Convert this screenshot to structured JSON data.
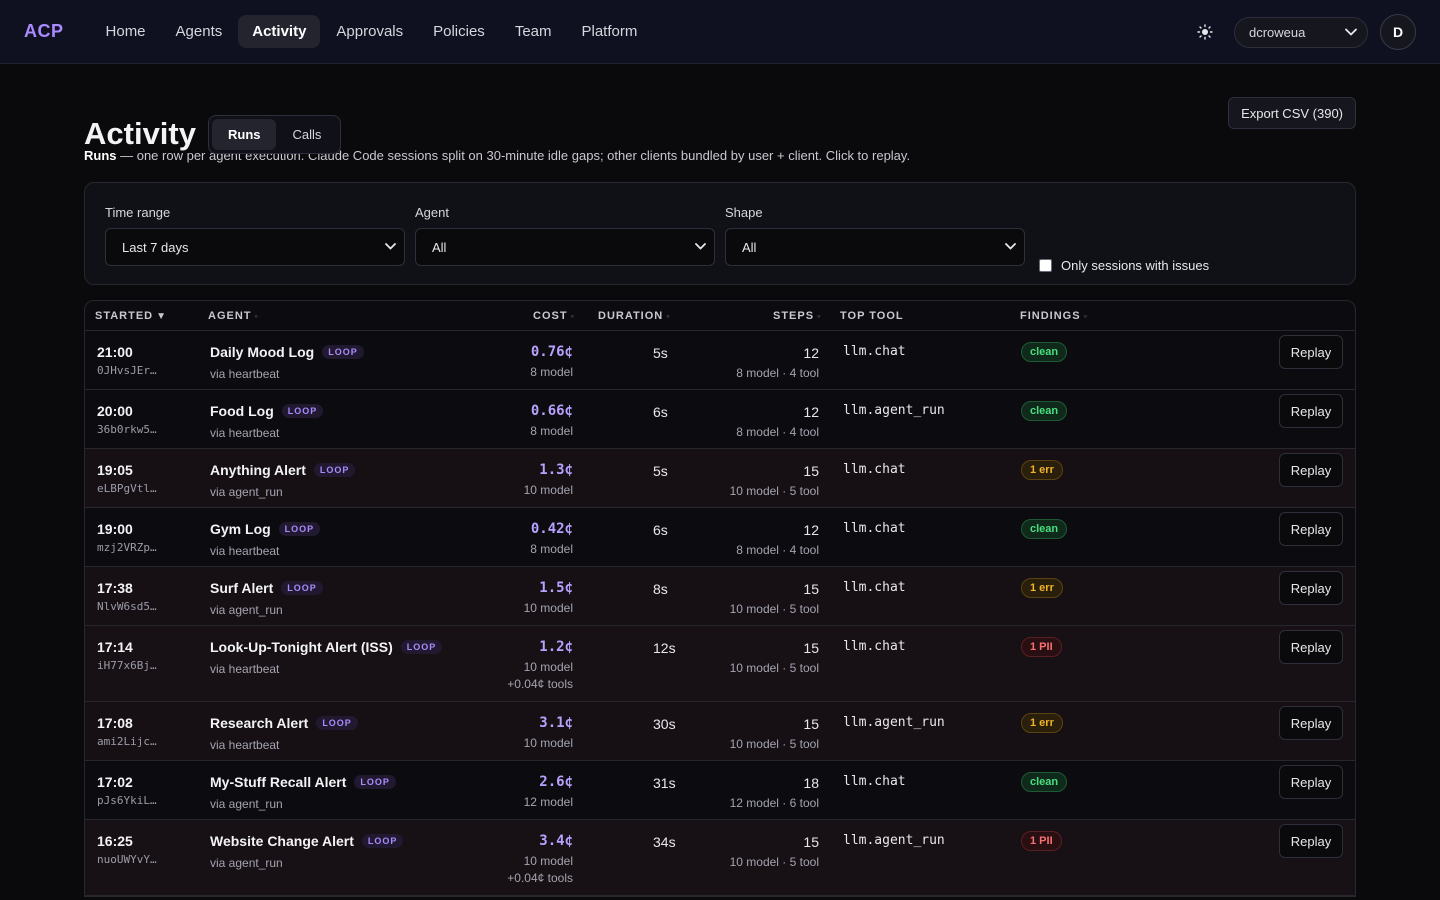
{
  "app": {
    "logo": "ACP"
  },
  "nav": {
    "items": [
      {
        "label": "Home"
      },
      {
        "label": "Agents"
      },
      {
        "label": "Activity"
      },
      {
        "label": "Approvals"
      },
      {
        "label": "Policies"
      },
      {
        "label": "Team"
      },
      {
        "label": "Platform"
      }
    ],
    "active": "Activity"
  },
  "user": {
    "org": "dcroweua",
    "avatar_initial": "D",
    "theme_icon": "sun-icon"
  },
  "page": {
    "title": "Activity",
    "tabs": [
      {
        "label": "Runs"
      },
      {
        "label": "Calls"
      }
    ],
    "active_tab": "Runs",
    "export_label": "Export CSV (390)",
    "desc_bold": "Runs",
    "desc_text": " — one row per agent execution. Claude Code sessions split on 30-minute idle gaps; other clients bundled by user + client. Click to replay."
  },
  "filters": {
    "time_range": {
      "label": "Time range",
      "value": "Last 7 days"
    },
    "agent": {
      "label": "Agent",
      "value": "All"
    },
    "shape": {
      "label": "Shape",
      "value": "All"
    },
    "issues_only": {
      "label": "Only sessions with issues",
      "checked": false
    }
  },
  "table": {
    "columns": {
      "started": "STARTED",
      "agent": "AGENT",
      "cost": "COST",
      "duration": "DURATION",
      "steps": "STEPS",
      "top_tool": "TOP TOOL",
      "findings": "FINDINGS"
    },
    "replay_label": "Replay",
    "rows": [
      {
        "time": "21:00",
        "id": "0JHvsJEr…",
        "agent": "Daily Mood Log",
        "tag": "LOOP",
        "via": "via heartbeat",
        "cost": "0.76¢",
        "cost_sub": "8 model",
        "cost_extra": "",
        "duration": "5s",
        "steps": "12",
        "steps_sub": "8 model · 4 tool",
        "tool": "llm.chat",
        "finding": "clean",
        "kind": "clean"
      },
      {
        "time": "20:00",
        "id": "36b0rkw5…",
        "agent": "Food Log",
        "tag": "LOOP",
        "via": "via heartbeat",
        "cost": "0.66¢",
        "cost_sub": "8 model",
        "cost_extra": "",
        "duration": "6s",
        "steps": "12",
        "steps_sub": "8 model · 4 tool",
        "tool": "llm.agent_run",
        "finding": "clean",
        "kind": "clean"
      },
      {
        "time": "19:05",
        "id": "eLBPgVtl…",
        "agent": "Anything Alert",
        "tag": "LOOP",
        "via": "via agent_run",
        "cost": "1.3¢",
        "cost_sub": "10 model",
        "cost_extra": "",
        "duration": "5s",
        "steps": "15",
        "steps_sub": "10 model · 5 tool",
        "tool": "llm.chat",
        "finding": "1 err",
        "kind": "err"
      },
      {
        "time": "19:00",
        "id": "mzj2VRZp…",
        "agent": "Gym Log",
        "tag": "LOOP",
        "via": "via heartbeat",
        "cost": "0.42¢",
        "cost_sub": "8 model",
        "cost_extra": "",
        "duration": "6s",
        "steps": "12",
        "steps_sub": "8 model · 4 tool",
        "tool": "llm.chat",
        "finding": "clean",
        "kind": "clean"
      },
      {
        "time": "17:38",
        "id": "NlvW6sd5…",
        "agent": "Surf Alert",
        "tag": "LOOP",
        "via": "via agent_run",
        "cost": "1.5¢",
        "cost_sub": "10 model",
        "cost_extra": "",
        "duration": "8s",
        "steps": "15",
        "steps_sub": "10 model · 5 tool",
        "tool": "llm.chat",
        "finding": "1 err",
        "kind": "err"
      },
      {
        "time": "17:14",
        "id": "iH77x6Bj…",
        "agent": "Look-Up-Tonight Alert (ISS)",
        "tag": "LOOP",
        "via": "via heartbeat",
        "cost": "1.2¢",
        "cost_sub": "10 model",
        "cost_extra": "+0.04¢ tools",
        "duration": "12s",
        "steps": "15",
        "steps_sub": "10 model · 5 tool",
        "tool": "llm.chat",
        "finding": "1 PII",
        "kind": "pii"
      },
      {
        "time": "17:08",
        "id": "ami2Lijc…",
        "agent": "Research Alert",
        "tag": "LOOP",
        "via": "via heartbeat",
        "cost": "3.1¢",
        "cost_sub": "10 model",
        "cost_extra": "",
        "duration": "30s",
        "steps": "15",
        "steps_sub": "10 model · 5 tool",
        "tool": "llm.agent_run",
        "finding": "1 err",
        "kind": "err"
      },
      {
        "time": "17:02",
        "id": "pJs6YkiL…",
        "agent": "My-Stuff Recall Alert",
        "tag": "LOOP",
        "via": "via agent_run",
        "cost": "2.6¢",
        "cost_sub": "12 model",
        "cost_extra": "",
        "duration": "31s",
        "steps": "18",
        "steps_sub": "12 model · 6 tool",
        "tool": "llm.chat",
        "finding": "clean",
        "kind": "clean"
      },
      {
        "time": "16:25",
        "id": "nuoUWYvY…",
        "agent": "Website Change Alert",
        "tag": "LOOP",
        "via": "via agent_run",
        "cost": "3.4¢",
        "cost_sub": "10 model",
        "cost_extra": "+0.04¢ tools",
        "duration": "34s",
        "steps": "15",
        "steps_sub": "10 model · 5 tool",
        "tool": "llm.agent_run",
        "finding": "1 PII",
        "kind": "pii"
      }
    ]
  },
  "colors": {
    "accent": "#a98bff",
    "clean": "#4ade80",
    "err": "#f0b429",
    "pii": "#f87171"
  }
}
